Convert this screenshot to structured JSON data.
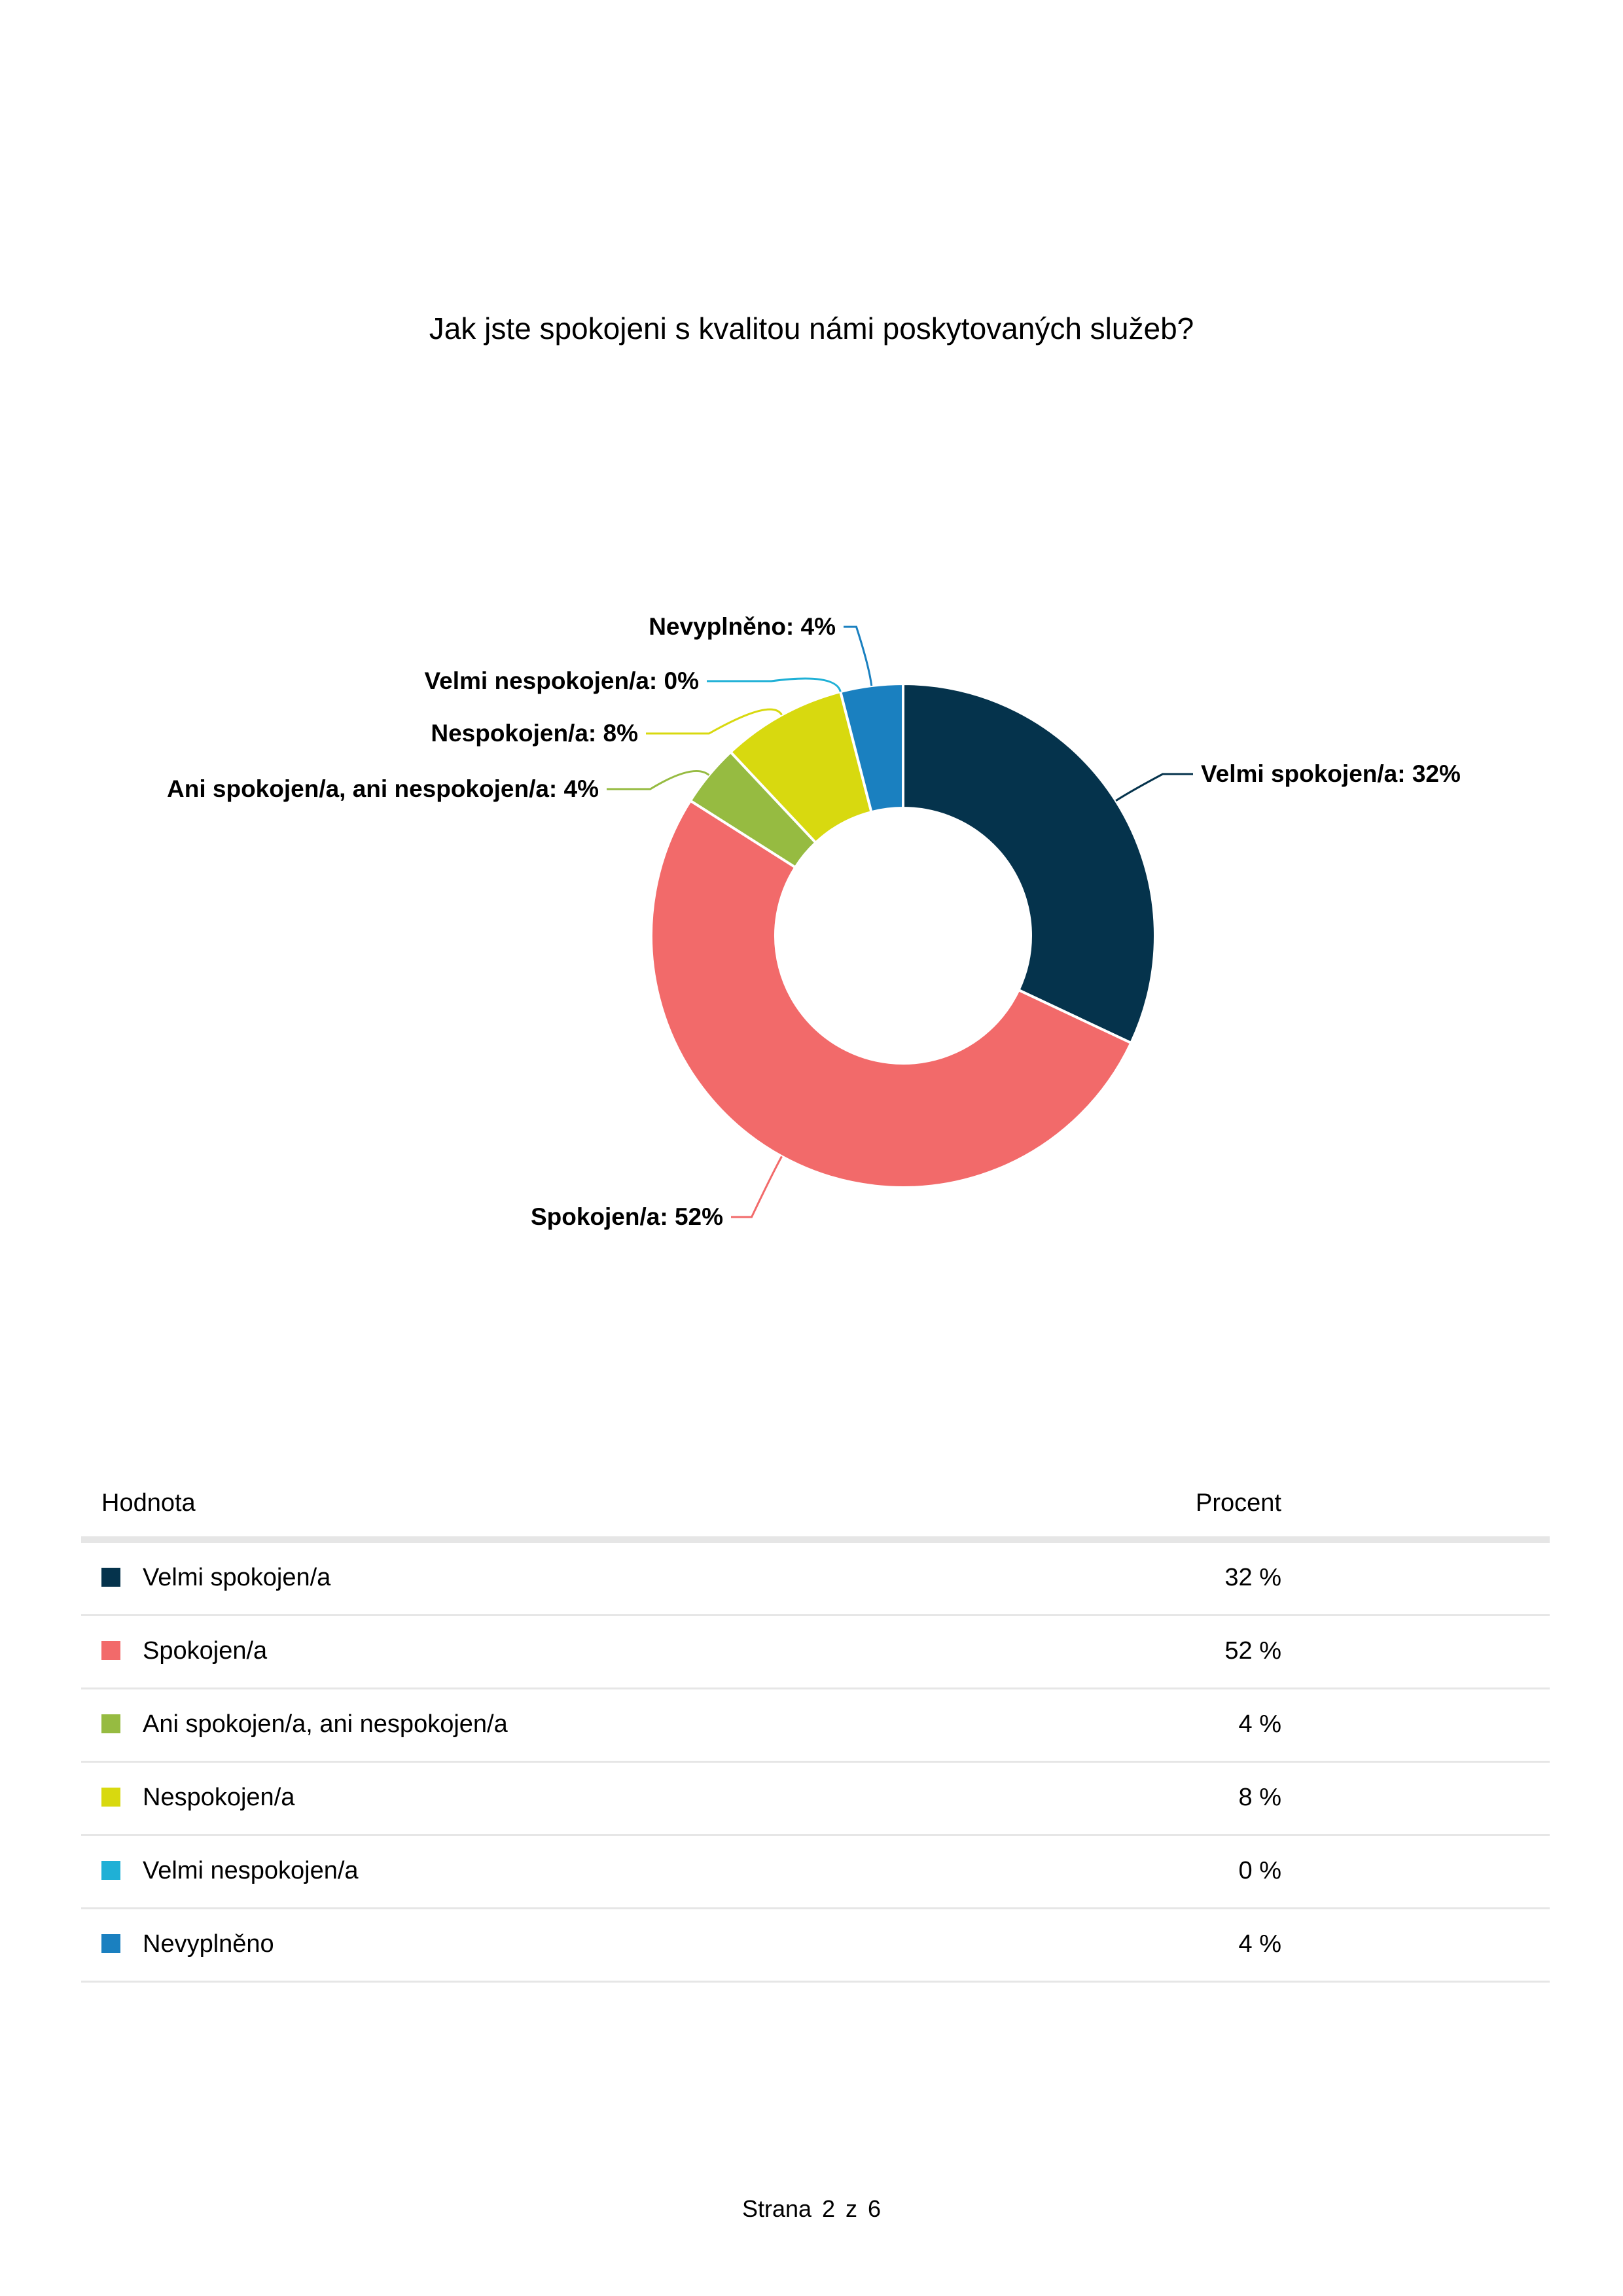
{
  "chart_data": {
    "type": "pie",
    "title": "Jak jste spokojeni s kvalitou námi poskytovaných služeb?",
    "slices": [
      {
        "label": "Velmi spokojen/a",
        "value": 32,
        "display": "Velmi spokojen/a: 32%",
        "color": "#05334c"
      },
      {
        "label": "Spokojen/a",
        "value": 52,
        "display": "Spokojen/a: 52%",
        "color": "#f26a6a"
      },
      {
        "label": "Ani spokojen/a, ani nespokojen/a",
        "value": 4,
        "display": "Ani spokojen/a, ani nespokojen/a: 4%",
        "color": "#96bb41"
      },
      {
        "label": "Nespokojen/a",
        "value": 8,
        "display": "Nespokojen/a: 8%",
        "color": "#d8d90f"
      },
      {
        "label": "Velmi nespokojen/a",
        "value": 0,
        "display": "Velmi nespokojen/a: 0%",
        "color": "#1fb0d6"
      },
      {
        "label": "Nevyplněno",
        "value": 4,
        "display": "Nevyplněno: 4%",
        "color": "#1a80c0"
      }
    ]
  },
  "table": {
    "header_value": "Hodnota",
    "header_percent": "Procent",
    "rows": [
      {
        "label": "Velmi spokojen/a",
        "percent": "32 %",
        "color": "#05334c"
      },
      {
        "label": "Spokojen/a",
        "percent": "52 %",
        "color": "#f26a6a"
      },
      {
        "label": "Ani spokojen/a, ani nespokojen/a",
        "percent": "4 %",
        "color": "#96bb41"
      },
      {
        "label": "Nespokojen/a",
        "percent": "8 %",
        "color": "#d8d90f"
      },
      {
        "label": "Velmi nespokojen/a",
        "percent": "0 %",
        "color": "#1fb0d6"
      },
      {
        "label": "Nevyplněno",
        "percent": "4 %",
        "color": "#1a80c0"
      }
    ]
  },
  "footer": "Strana 2 z 6"
}
